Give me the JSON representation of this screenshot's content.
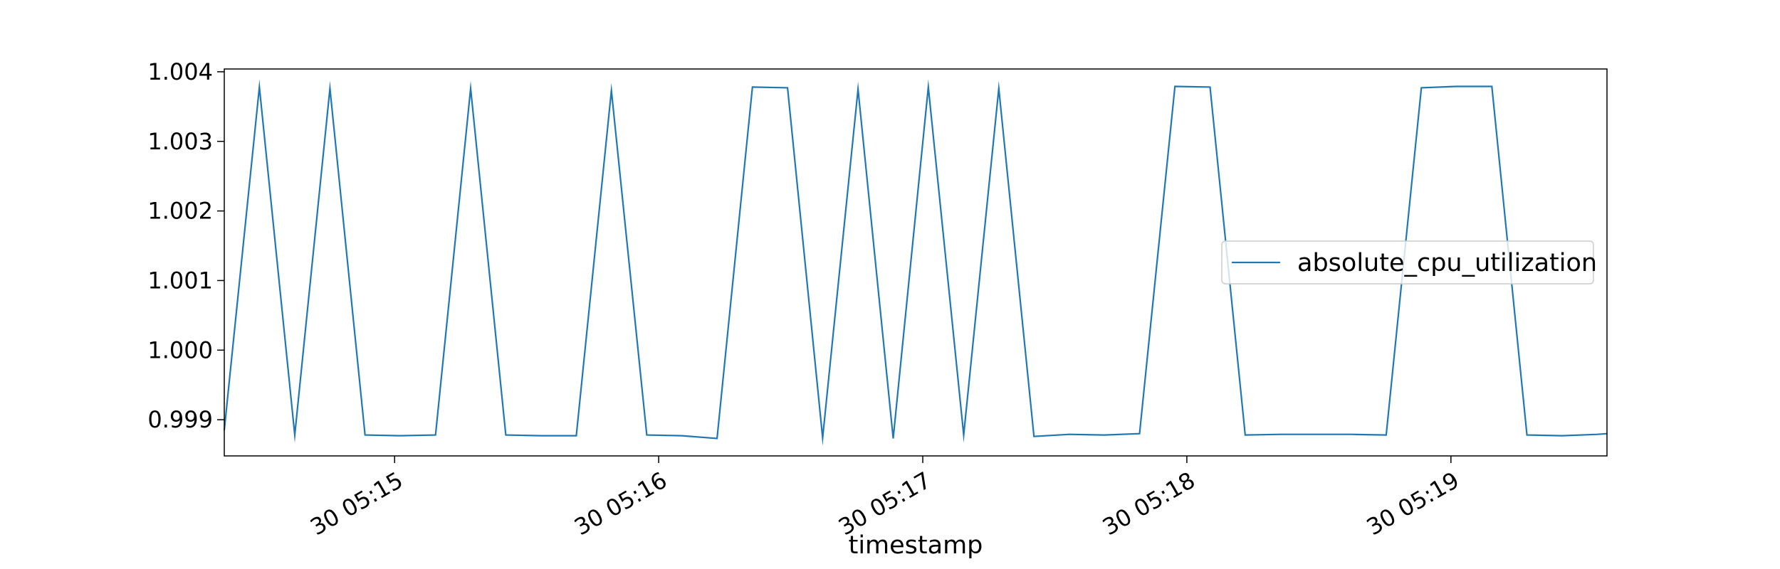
{
  "chart_data": {
    "type": "line",
    "title": "",
    "xlabel": "timestamp",
    "ylabel": "",
    "x_tick_labels": [
      "30 05:15",
      "30 05:16",
      "30 05:17",
      "30 05:18",
      "30 05:19"
    ],
    "x_tick_minutes": [
      15,
      16,
      17,
      18,
      19
    ],
    "y_ticks": [
      0.999,
      1.0,
      1.001,
      1.002,
      1.003,
      1.004
    ],
    "y_tick_labels": [
      "0.999",
      "1.000",
      "1.001",
      "1.002",
      "1.003",
      "1.004"
    ],
    "xlim_minutes": [
      14.355,
      19.591
    ],
    "ylim": [
      0.99848,
      1.00404
    ],
    "grid": false,
    "legend_position": "center right",
    "series": [
      {
        "name": "absolute_cpu_utilization",
        "color": "#1f77b4",
        "x_minutes": [
          14.355,
          14.488,
          14.622,
          14.755,
          14.888,
          15.021,
          15.155,
          15.288,
          15.421,
          15.555,
          15.688,
          15.821,
          15.955,
          16.088,
          16.221,
          16.355,
          16.488,
          16.621,
          16.755,
          16.888,
          17.021,
          17.155,
          17.288,
          17.421,
          17.555,
          17.688,
          17.821,
          17.955,
          18.088,
          18.221,
          18.355,
          18.488,
          18.621,
          18.755,
          18.888,
          19.021,
          19.155,
          19.288,
          19.421,
          19.555,
          19.591
        ],
        "values": [
          0.99885,
          1.00378,
          0.99878,
          1.00376,
          0.99878,
          0.99877,
          0.99878,
          1.00376,
          0.99878,
          0.99877,
          0.99877,
          1.00373,
          0.99878,
          0.99877,
          0.99873,
          1.00378,
          1.00377,
          0.99874,
          1.00375,
          0.99873,
          1.00378,
          0.99878,
          1.00376,
          0.99876,
          0.99879,
          0.99878,
          0.9988,
          1.00379,
          1.00378,
          0.99878,
          0.99879,
          0.99879,
          0.99879,
          0.99878,
          1.00377,
          1.00379,
          1.00379,
          0.99878,
          0.99877,
          0.99879,
          0.9988
        ]
      }
    ]
  }
}
